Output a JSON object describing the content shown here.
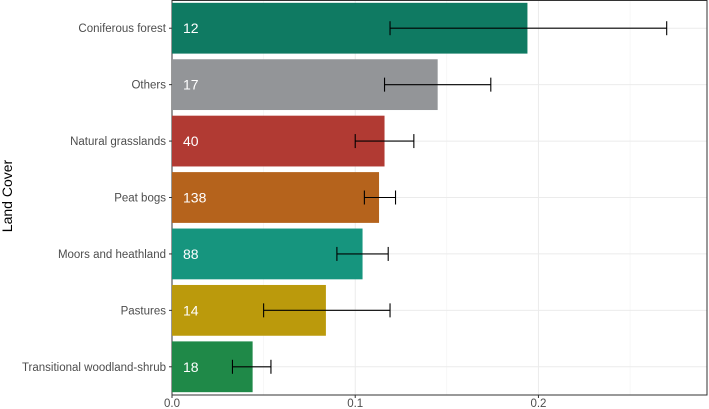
{
  "chart_data": {
    "type": "bar",
    "orientation": "horizontal",
    "xlabel": "",
    "ylabel": "Land Cover",
    "xlim": [
      0,
      0.292
    ],
    "xticks": [
      0,
      0.1,
      0.2
    ],
    "xtick_labels": [
      "0.0",
      "0.1",
      "0.2"
    ],
    "grid": true,
    "categories": [
      "Coniferous forest",
      "Others",
      "Natural grasslands",
      "Peat bogs",
      "Moors and heathland",
      "Pastures",
      "Transitional woodland-shrub"
    ],
    "values": [
      0.194,
      0.145,
      0.116,
      0.113,
      0.104,
      0.084,
      0.044
    ],
    "error_low": [
      0.119,
      0.116,
      0.1,
      0.105,
      0.09,
      0.05,
      0.033
    ],
    "error_high": [
      0.27,
      0.174,
      0.132,
      0.122,
      0.118,
      0.119,
      0.054
    ],
    "bar_labels": [
      "12",
      "17",
      "40",
      "138",
      "88",
      "14",
      "18"
    ],
    "colors": [
      "#0f7a62",
      "#939598",
      "#b13a33",
      "#b5631c",
      "#16957e",
      "#bb9a0c",
      "#1f8948"
    ]
  }
}
